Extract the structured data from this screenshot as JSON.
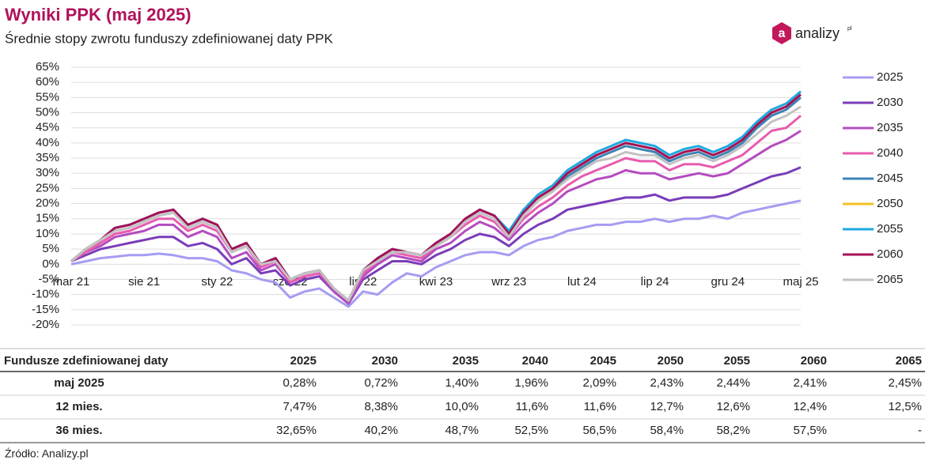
{
  "header": {
    "title": "Wyniki PPK (maj 2025)",
    "subtitle": "Średnie stopy zwrotu funduszy zdefiniowanej daty PPK"
  },
  "logo": {
    "icon": "a",
    "text": "analizy",
    "suffix": "pl"
  },
  "chart_data": {
    "type": "line",
    "grid": true,
    "legend": "right",
    "categories": [
      "mar 21",
      null,
      null,
      null,
      null,
      "sie 21",
      null,
      null,
      null,
      null,
      "sty 22",
      null,
      null,
      null,
      null,
      "cze 22",
      null,
      null,
      null,
      null,
      "lis 22",
      null,
      null,
      null,
      null,
      "kwi 23",
      null,
      null,
      null,
      null,
      "wrz 23",
      null,
      null,
      null,
      null,
      "lut 24",
      null,
      null,
      null,
      null,
      "lip 24",
      null,
      null,
      null,
      null,
      "gru 24",
      null,
      null,
      null,
      null,
      "maj 25"
    ],
    "ylim": [
      -20,
      65
    ],
    "yticks": [
      {
        "value": -20,
        "label": "-20%"
      },
      {
        "value": -15,
        "label": "-15%"
      },
      {
        "value": -10,
        "label": "-10%"
      },
      {
        "value": -5,
        "label": "-5%"
      },
      {
        "value": 0,
        "label": "0%"
      },
      {
        "value": 5,
        "label": "5%"
      },
      {
        "value": 10,
        "label": "10%"
      },
      {
        "value": 15,
        "label": "15%"
      },
      {
        "value": 20,
        "label": "20%"
      },
      {
        "value": 25,
        "label": "25%"
      },
      {
        "value": 30,
        "label": "30%"
      },
      {
        "value": 35,
        "label": "35%"
      },
      {
        "value": 40,
        "label": "40%"
      },
      {
        "value": 45,
        "label": "45%"
      },
      {
        "value": 50,
        "label": "50%"
      },
      {
        "value": 55,
        "label": "55%"
      },
      {
        "value": 60,
        "label": "60%"
      },
      {
        "value": 65,
        "label": "65%"
      }
    ],
    "series": [
      {
        "name": "2025",
        "color": "#a59cf2",
        "values": [
          0,
          1,
          2,
          2.5,
          3,
          3,
          3.5,
          3,
          2,
          2,
          1,
          -2,
          -3,
          -5,
          -6,
          -11,
          -9,
          -8,
          -11,
          -14,
          -9,
          -10,
          -6,
          -3,
          -4,
          -1,
          1,
          3,
          4,
          4,
          3,
          6,
          8,
          9,
          11,
          12,
          13,
          13,
          14,
          14,
          15,
          14,
          15,
          15,
          16,
          15,
          17,
          18,
          19,
          20,
          21
        ]
      },
      {
        "name": "2030",
        "color": "#7a3db8",
        "values": [
          1,
          3,
          5,
          6,
          7,
          8,
          9,
          9,
          6,
          7,
          5,
          0,
          2,
          -3,
          -2,
          -7,
          -5,
          -4,
          -9,
          -13,
          -5,
          -2,
          1,
          1,
          0,
          3,
          5,
          8,
          10,
          9,
          6,
          10,
          13,
          15,
          18,
          19,
          20,
          21,
          22,
          22,
          23,
          21,
          22,
          22,
          22,
          23,
          25,
          27,
          29,
          30,
          32
        ]
      },
      {
        "name": "2035",
        "color": "#b44cc0",
        "values": [
          1,
          4,
          6,
          9,
          10,
          11,
          13,
          13,
          9,
          11,
          9,
          2,
          4,
          -2,
          0,
          -6,
          -4,
          -3,
          -9,
          -13,
          -4,
          0,
          3,
          2,
          1,
          5,
          7,
          11,
          14,
          12,
          8,
          13,
          17,
          20,
          24,
          26,
          28,
          29,
          31,
          30,
          30,
          28,
          29,
          30,
          29,
          30,
          33,
          36,
          39,
          41,
          44
        ]
      },
      {
        "name": "2040",
        "color": "#e85bae",
        "values": [
          1,
          4,
          7,
          10,
          11,
          13,
          15,
          15,
          11,
          13,
          11,
          4,
          6,
          -1,
          1,
          -6,
          -4,
          -3,
          -8,
          -12,
          -3,
          1,
          4,
          3,
          2,
          6,
          9,
          13,
          16,
          14,
          9,
          15,
          19,
          22,
          26,
          29,
          31,
          33,
          35,
          34,
          34,
          31,
          33,
          33,
          32,
          34,
          36,
          40,
          44,
          45,
          49
        ]
      },
      {
        "name": "2045",
        "color": "#3c84b5",
        "values": [
          1,
          5,
          8,
          12,
          13,
          15,
          17,
          18,
          13,
          15,
          13,
          5,
          7,
          0,
          2,
          -5,
          -3,
          -2,
          -8,
          -12,
          -2,
          2,
          5,
          4,
          3,
          7,
          10,
          15,
          18,
          16,
          9,
          16,
          21,
          24,
          29,
          32,
          35,
          37,
          39,
          38,
          37,
          34,
          36,
          37,
          35,
          37,
          40,
          45,
          49,
          51,
          55
        ]
      },
      {
        "name": "2050",
        "color": "#f6c026",
        "values": [
          1,
          5,
          8,
          12,
          13,
          15,
          17,
          18,
          13,
          15,
          13,
          5,
          7,
          0,
          2,
          -5,
          -3,
          -2,
          -8,
          -12,
          -2,
          2,
          5,
          4,
          3,
          7,
          10,
          15,
          18,
          16,
          10,
          17,
          22,
          25,
          30,
          33,
          36,
          38,
          40,
          39,
          38,
          35,
          37,
          38,
          36,
          38,
          41,
          46,
          50,
          52,
          56
        ]
      },
      {
        "name": "2055",
        "color": "#1ea9e0",
        "values": [
          1,
          5,
          8,
          12,
          13,
          15,
          17,
          18,
          13,
          15,
          13,
          5,
          7,
          0,
          2,
          -5,
          -3,
          -2,
          -8,
          -12,
          -2,
          2,
          5,
          4,
          3,
          7,
          10,
          15,
          18,
          16,
          11,
          18,
          23,
          26,
          31,
          34,
          37,
          39,
          41,
          40,
          39,
          36,
          38,
          39,
          37,
          39,
          42,
          47,
          51,
          53,
          57
        ]
      },
      {
        "name": "2060",
        "color": "#a6105a",
        "values": [
          1,
          5,
          8,
          12,
          13,
          15,
          17,
          18,
          13,
          15,
          13,
          5,
          7,
          0,
          2,
          -5,
          -3,
          -2,
          -8,
          -12,
          -2,
          2,
          5,
          4,
          3,
          7,
          10,
          15,
          18,
          16,
          10,
          17,
          22,
          25,
          30,
          33,
          36,
          38,
          40,
          39,
          38,
          35,
          37,
          38,
          36,
          38,
          41,
          46,
          50,
          52,
          56
        ]
      },
      {
        "name": "2065",
        "color": "#c2c2c2",
        "values": [
          1,
          5,
          8,
          11,
          12,
          14,
          16,
          17,
          12,
          14,
          12,
          4,
          6,
          0,
          1,
          -5,
          -3,
          -2,
          -8,
          -12,
          -2,
          1,
          4,
          4,
          3,
          6,
          9,
          14,
          17,
          15,
          9,
          16,
          21,
          24,
          28,
          31,
          34,
          35,
          37,
          36,
          36,
          33,
          35,
          36,
          34,
          36,
          39,
          43,
          47,
          49,
          52
        ]
      }
    ]
  },
  "table": {
    "header": [
      "Fundusze zdefiniowanej daty",
      "2025",
      "2030",
      "2035",
      "2040",
      "2045",
      "2050",
      "2055",
      "2060",
      "2065"
    ],
    "rows": [
      [
        "maj 2025",
        "0,28%",
        "0,72%",
        "1,40%",
        "1,96%",
        "2,09%",
        "2,43%",
        "2,44%",
        "2,41%",
        "2,45%"
      ],
      [
        "12 mies.",
        "7,47%",
        "8,38%",
        "10,0%",
        "11,6%",
        "11,6%",
        "12,7%",
        "12,6%",
        "12,4%",
        "12,5%"
      ],
      [
        "36 mies.",
        "32,65%",
        "40,2%",
        "48,7%",
        "52,5%",
        "56,5%",
        "58,4%",
        "58,2%",
        "57,5%",
        "-"
      ]
    ]
  },
  "source": "Źródło: Analizy.pl"
}
